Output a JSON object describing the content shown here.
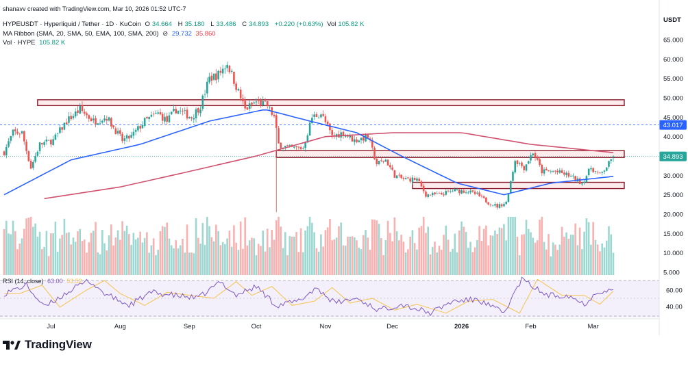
{
  "header": {
    "attribution": "shanavv created with TradingView.com, Mar 10, 2026 01:52 UTC-7",
    "symbol_line": {
      "name": "HYPEUSDT · Hyperliquid / Tether · 1D · KuCoin",
      "open_label": "O",
      "open": "34.664",
      "high_label": "H",
      "high": "35.180",
      "low_label": "L",
      "low": "33.486",
      "close_label": "C",
      "close": "34.893",
      "change": "+0.220 (+0.63%)",
      "vol_label": "Vol",
      "vol": "105.82 K"
    },
    "ma_line": {
      "label": "MA Ribbon (SMA, 20, SMA, 50, EMA, 100, SMA, 200)",
      "v1": "29.732",
      "v2": "35.860"
    },
    "vol_line": {
      "label": "Vol · HYPE",
      "value": "105.82 K"
    },
    "rsi_line": {
      "label": "RSI (14, close)",
      "value": "63.00",
      "value2": "53.52"
    }
  },
  "axis": {
    "currency": "USDT",
    "price_ticks": [
      "65.000",
      "60.000",
      "55.000",
      "50.000",
      "45.000",
      "40.000",
      "35.000",
      "30.000",
      "25.000",
      "20.000",
      "15.000",
      "10.000",
      "5.000"
    ],
    "rsi_ticks": [
      "60.00",
      "40.00"
    ],
    "time_labels": [
      "Jul",
      "Aug",
      "Sep",
      "Oct",
      "Nov",
      "Dec",
      "2026",
      "Feb",
      "Mar"
    ]
  },
  "badges": {
    "level": "43.017",
    "last_price": "34.893"
  },
  "brand": "TradingView",
  "colors": {
    "up": "#26a69a",
    "down": "#ef5350",
    "sma50": "#2962ff",
    "ma200": "#d0506e",
    "rsi": "#7e57c2",
    "rsi_ma": "#f5c24a",
    "zone_border": "#8b1a2a"
  },
  "chart_data": {
    "type": "candlestick",
    "title": "HYPEUSDT · Hyperliquid / Tether · 1D · KuCoin",
    "x_range": [
      "2025-06-10",
      "2026-03-10"
    ],
    "ylim": [
      5,
      65
    ],
    "grid": false,
    "anchors": [
      [
        "2025-06-10",
        36
      ],
      [
        "2025-06-14",
        41
      ],
      [
        "2025-06-18",
        41
      ],
      [
        "2025-06-22",
        32
      ],
      [
        "2025-06-26",
        38
      ],
      [
        "2025-07-02",
        39
      ],
      [
        "2025-07-08",
        44
      ],
      [
        "2025-07-14",
        47
      ],
      [
        "2025-07-20",
        44
      ],
      [
        "2025-07-26",
        45
      ],
      [
        "2025-08-02",
        39
      ],
      [
        "2025-08-06",
        40
      ],
      [
        "2025-08-12",
        44
      ],
      [
        "2025-08-18",
        46
      ],
      [
        "2025-08-22",
        44
      ],
      [
        "2025-08-26",
        47
      ],
      [
        "2025-09-02",
        45
      ],
      [
        "2025-09-06",
        48
      ],
      [
        "2025-09-10",
        55
      ],
      [
        "2025-09-14",
        56
      ],
      [
        "2025-09-18",
        59
      ],
      [
        "2025-09-22",
        53
      ],
      [
        "2025-09-26",
        47
      ],
      [
        "2025-10-01",
        49
      ],
      [
        "2025-10-06",
        48
      ],
      [
        "2025-10-09",
        45
      ],
      [
        "2025-10-11",
        38
      ],
      [
        "2025-10-16",
        37
      ],
      [
        "2025-10-22",
        37
      ],
      [
        "2025-10-26",
        45
      ],
      [
        "2025-10-30",
        46
      ],
      [
        "2025-11-04",
        40
      ],
      [
        "2025-11-09",
        41
      ],
      [
        "2025-11-14",
        39
      ],
      [
        "2025-11-20",
        40
      ],
      [
        "2025-11-24",
        33
      ],
      [
        "2025-11-28",
        34
      ],
      [
        "2025-12-02",
        30
      ],
      [
        "2025-12-06",
        29
      ],
      [
        "2025-12-12",
        29
      ],
      [
        "2025-12-16",
        25
      ],
      [
        "2025-12-22",
        25
      ],
      [
        "2025-12-28",
        26
      ],
      [
        "2026-01-03",
        26
      ],
      [
        "2026-01-08",
        25
      ],
      [
        "2026-01-13",
        23
      ],
      [
        "2026-01-17",
        22
      ],
      [
        "2026-01-21",
        23
      ],
      [
        "2026-01-25",
        34
      ],
      [
        "2026-01-29",
        32
      ],
      [
        "2026-02-02",
        36
      ],
      [
        "2026-02-06",
        31
      ],
      [
        "2026-02-12",
        31
      ],
      [
        "2026-02-18",
        30
      ],
      [
        "2026-02-24",
        28
      ],
      [
        "2026-02-28",
        32
      ],
      [
        "2026-03-04",
        30
      ],
      [
        "2026-03-08",
        33
      ],
      [
        "2026-03-10",
        34.893
      ]
    ],
    "sma50": [
      [
        "2025-06-10",
        25
      ],
      [
        "2025-07-10",
        34
      ],
      [
        "2025-08-10",
        38
      ],
      [
        "2025-09-10",
        44
      ],
      [
        "2025-10-05",
        47
      ],
      [
        "2025-10-25",
        44
      ],
      [
        "2025-11-15",
        41
      ],
      [
        "2025-12-05",
        35
      ],
      [
        "2025-12-30",
        28
      ],
      [
        "2026-01-20",
        25
      ],
      [
        "2026-02-10",
        28
      ],
      [
        "2026-03-10",
        29.732
      ]
    ],
    "ma200": [
      [
        "2025-06-28",
        24
      ],
      [
        "2025-08-01",
        27
      ],
      [
        "2025-09-01",
        31
      ],
      [
        "2025-10-01",
        35
      ],
      [
        "2025-11-01",
        40
      ],
      [
        "2025-12-01",
        41
      ],
      [
        "2026-01-01",
        41
      ],
      [
        "2026-02-01",
        38
      ],
      [
        "2026-03-10",
        35.86
      ]
    ],
    "zones": [
      {
        "start": "2025-06-25",
        "end": "2026-03-10",
        "low": 48,
        "high": 49.5
      },
      {
        "start": "2025-10-10",
        "end": "2026-03-10",
        "low": 34.6,
        "high": 36.4
      },
      {
        "start": "2025-12-10",
        "end": "2026-03-10",
        "low": 26.6,
        "high": 28.2
      }
    ],
    "level_line": 43.017,
    "rsi_anchors": [
      [
        "2025-06-10",
        58
      ],
      [
        "2025-06-20",
        72
      ],
      [
        "2025-06-28",
        35
      ],
      [
        "2025-07-10",
        64
      ],
      [
        "2025-07-18",
        80
      ],
      [
        "2025-07-25",
        58
      ],
      [
        "2025-08-05",
        38
      ],
      [
        "2025-08-15",
        60
      ],
      [
        "2025-08-25",
        55
      ],
      [
        "2025-09-05",
        50
      ],
      [
        "2025-09-15",
        78
      ],
      [
        "2025-09-22",
        55
      ],
      [
        "2025-10-01",
        70
      ],
      [
        "2025-10-10",
        38
      ],
      [
        "2025-10-20",
        45
      ],
      [
        "2025-10-28",
        68
      ],
      [
        "2025-11-05",
        42
      ],
      [
        "2025-11-15",
        50
      ],
      [
        "2025-11-25",
        30
      ],
      [
        "2025-12-05",
        40
      ],
      [
        "2025-12-18",
        25
      ],
      [
        "2025-12-28",
        45
      ],
      [
        "2026-01-08",
        48
      ],
      [
        "2026-01-20",
        25
      ],
      [
        "2026-01-28",
        82
      ],
      [
        "2026-02-08",
        55
      ],
      [
        "2026-02-18",
        55
      ],
      [
        "2026-02-25",
        40
      ],
      [
        "2026-03-03",
        62
      ],
      [
        "2026-03-10",
        63
      ]
    ]
  }
}
